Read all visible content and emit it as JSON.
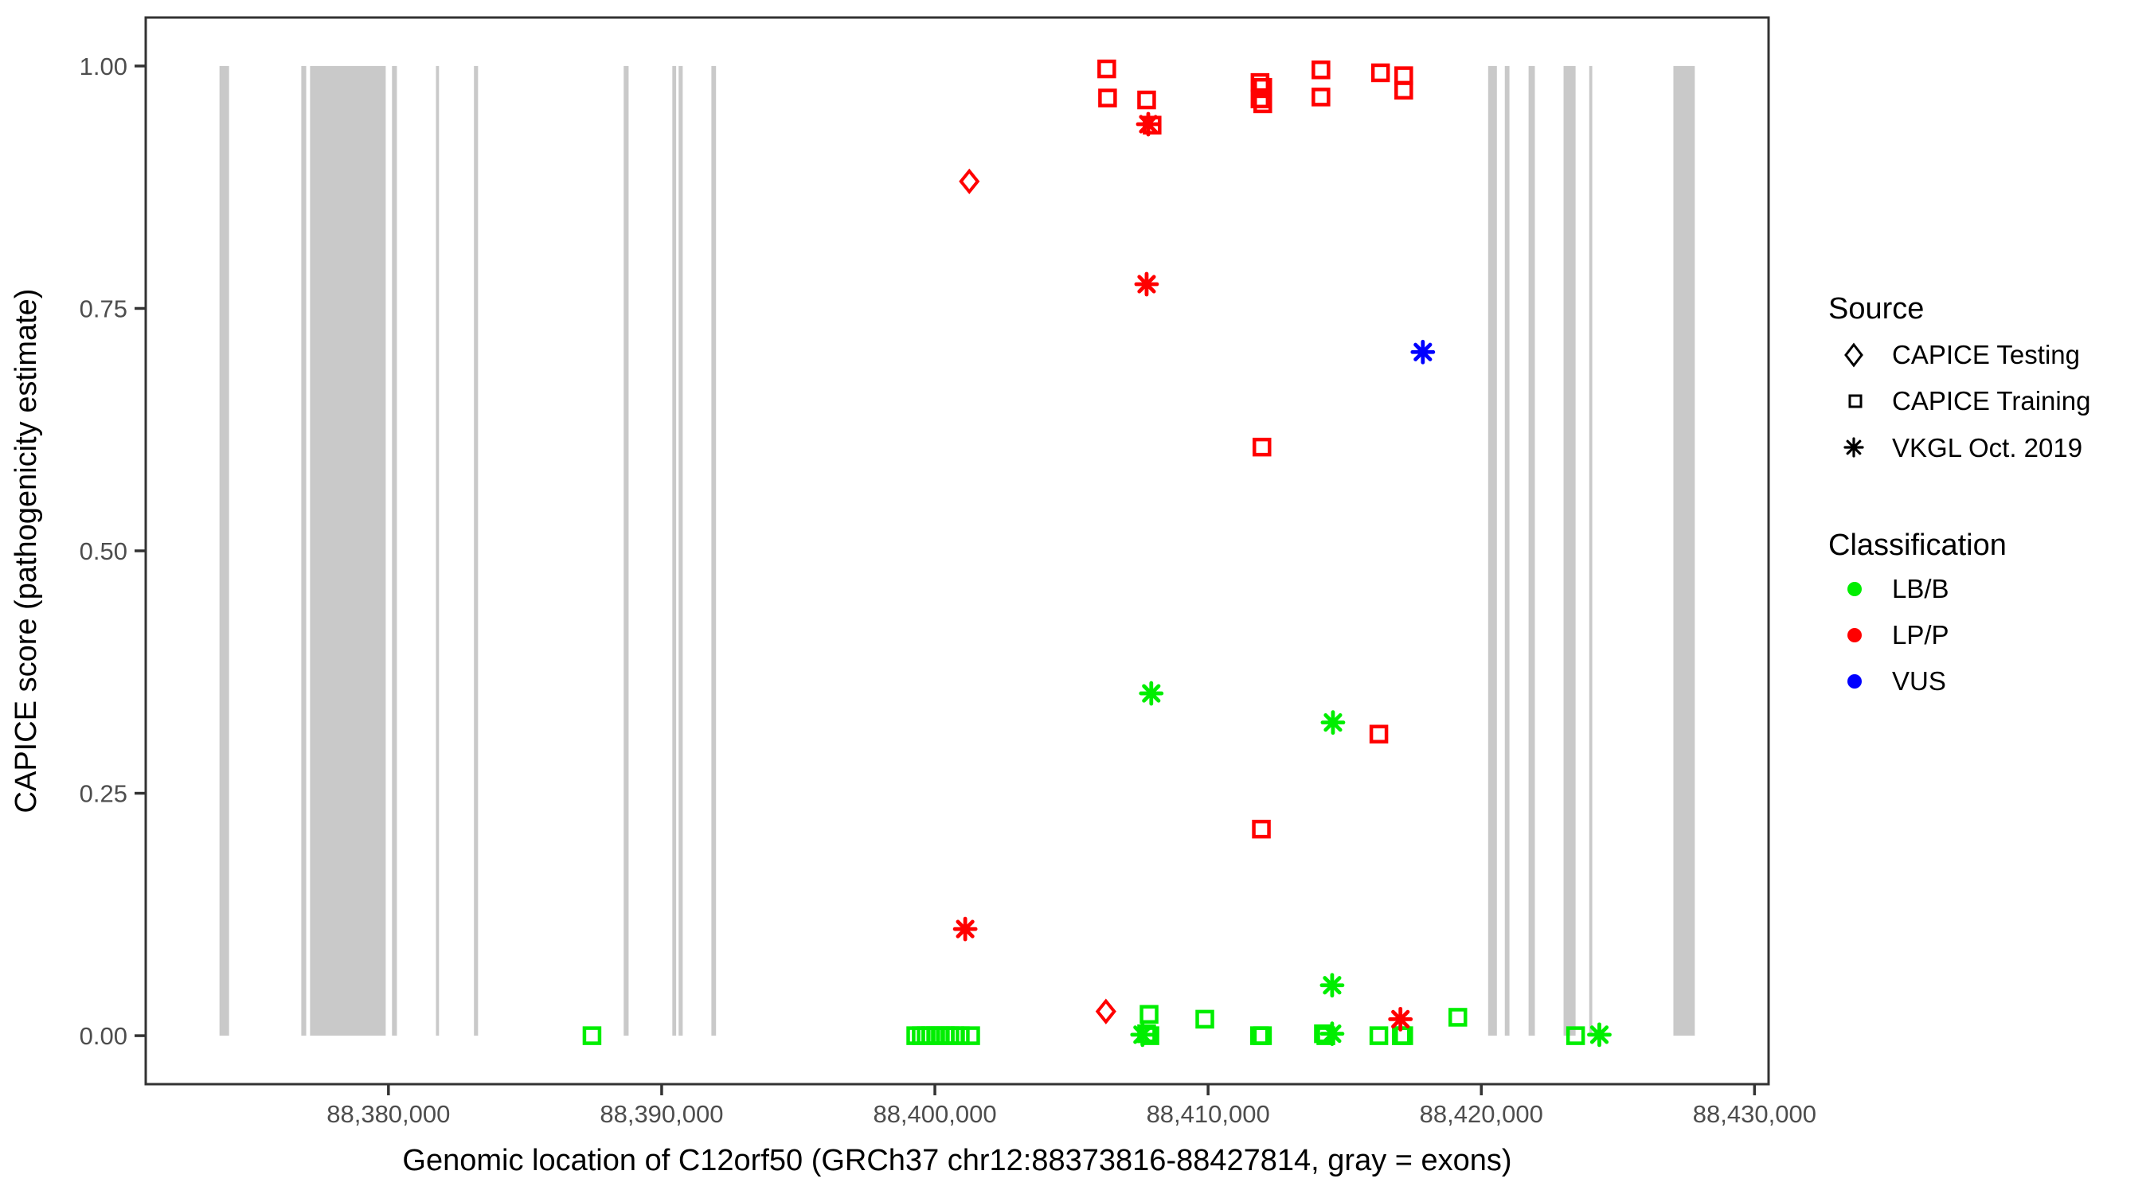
{
  "chart_data": {
    "type": "scatter",
    "xlabel": "Genomic location of C12orf50 (GRCh37 chr12:88373816-88427814, gray = exons)",
    "ylabel": "CAPICE score (pathogenicity estimate)",
    "xlim": [
      88371116,
      88430514
    ],
    "ylim": [
      -0.05,
      1.05
    ],
    "x_ticks": [
      88380000,
      88390000,
      88400000,
      88410000,
      88420000,
      88430000
    ],
    "x_tick_labels": [
      "88,380,000",
      "88,390,000",
      "88,400,000",
      "88,410,000",
      "88,420,000",
      "88,430,000"
    ],
    "y_ticks": [
      0,
      0.25,
      0.5,
      0.75,
      1
    ],
    "y_tick_labels": [
      "0.00",
      "0.25",
      "0.50",
      "0.75",
      "1.00"
    ],
    "grid": false,
    "gene_region": [
      88373816,
      88427814
    ],
    "exon_color": "#C9C9C9",
    "colors": {
      "LB/B": "#00EE00",
      "LP/P": "#FF0000",
      "VUS": "#0000FF"
    },
    "shapes": {
      "CAPICE Testing": "diamond",
      "CAPICE Training": "square",
      "VKGL Oct. 2019": "asterisk"
    },
    "exons": [
      [
        88373816,
        88374166
      ],
      [
        88376810,
        88376990
      ],
      [
        88377130,
        88379900
      ],
      [
        88380130,
        88380310
      ],
      [
        88381740,
        88381850
      ],
      [
        88383130,
        88383280
      ],
      [
        88388610,
        88388790
      ],
      [
        88390390,
        88390530
      ],
      [
        88390620,
        88390770
      ],
      [
        88391820,
        88391990
      ],
      [
        88420250,
        88420570
      ],
      [
        88420860,
        88421030
      ],
      [
        88421730,
        88421960
      ],
      [
        88423010,
        88423450
      ],
      [
        88423950,
        88424060
      ],
      [
        88427030,
        88427814
      ]
    ],
    "points": [
      {
        "x": 88401260,
        "y": 0.881,
        "source": "CAPICE Testing",
        "classification": "LP/P"
      },
      {
        "x": 88406260,
        "y": 0.025,
        "source": "CAPICE Testing",
        "classification": "LP/P"
      },
      {
        "x": 88406290,
        "y": 0.997,
        "source": "CAPICE Training",
        "classification": "LP/P"
      },
      {
        "x": 88406320,
        "y": 0.967,
        "source": "CAPICE Training",
        "classification": "LP/P"
      },
      {
        "x": 88407750,
        "y": 0.965,
        "source": "CAPICE Training",
        "classification": "LP/P"
      },
      {
        "x": 88407950,
        "y": 0.939,
        "source": "CAPICE Training",
        "classification": "LP/P"
      },
      {
        "x": 88411900,
        "y": 0.983,
        "source": "CAPICE Training",
        "classification": "LP/P"
      },
      {
        "x": 88412000,
        "y": 0.978,
        "source": "CAPICE Training",
        "classification": "LP/P"
      },
      {
        "x": 88411900,
        "y": 0.966,
        "source": "CAPICE Training",
        "classification": "LP/P"
      },
      {
        "x": 88412000,
        "y": 0.961,
        "source": "CAPICE Training",
        "classification": "LP/P"
      },
      {
        "x": 88414130,
        "y": 0.996,
        "source": "CAPICE Training",
        "classification": "LP/P"
      },
      {
        "x": 88414130,
        "y": 0.968,
        "source": "CAPICE Training",
        "classification": "LP/P"
      },
      {
        "x": 88416310,
        "y": 0.993,
        "source": "CAPICE Training",
        "classification": "LP/P"
      },
      {
        "x": 88417160,
        "y": 0.99,
        "source": "CAPICE Training",
        "classification": "LP/P"
      },
      {
        "x": 88417160,
        "y": 0.975,
        "source": "CAPICE Training",
        "classification": "LP/P"
      },
      {
        "x": 88411970,
        "y": 0.607,
        "source": "CAPICE Training",
        "classification": "LP/P"
      },
      {
        "x": 88416250,
        "y": 0.311,
        "source": "CAPICE Training",
        "classification": "LP/P"
      },
      {
        "x": 88411950,
        "y": 0.213,
        "source": "CAPICE Training",
        "classification": "LP/P"
      },
      {
        "x": 88387450,
        "y": 0.0,
        "source": "CAPICE Training",
        "classification": "LB/B"
      },
      {
        "x": 88399300,
        "y": 0.0,
        "source": "CAPICE Training",
        "classification": "LB/B"
      },
      {
        "x": 88399500,
        "y": 0.0,
        "source": "CAPICE Training",
        "classification": "LB/B"
      },
      {
        "x": 88399680,
        "y": 0.0,
        "source": "CAPICE Training",
        "classification": "LB/B"
      },
      {
        "x": 88399850,
        "y": 0.0,
        "source": "CAPICE Training",
        "classification": "LB/B"
      },
      {
        "x": 88400030,
        "y": 0.0,
        "source": "CAPICE Training",
        "classification": "LB/B"
      },
      {
        "x": 88400200,
        "y": 0.0,
        "source": "CAPICE Training",
        "classification": "LB/B"
      },
      {
        "x": 88400380,
        "y": 0.0,
        "source": "CAPICE Training",
        "classification": "LB/B"
      },
      {
        "x": 88400550,
        "y": 0.0,
        "source": "CAPICE Training",
        "classification": "LB/B"
      },
      {
        "x": 88400730,
        "y": 0.0,
        "source": "CAPICE Training",
        "classification": "LB/B"
      },
      {
        "x": 88400930,
        "y": 0.0,
        "source": "CAPICE Training",
        "classification": "LB/B"
      },
      {
        "x": 88401310,
        "y": 0.0,
        "source": "CAPICE Training",
        "classification": "LB/B"
      },
      {
        "x": 88407840,
        "y": 0.022,
        "source": "CAPICE Training",
        "classification": "LB/B"
      },
      {
        "x": 88407750,
        "y": 0.002,
        "source": "CAPICE Training",
        "classification": "LB/B"
      },
      {
        "x": 88407870,
        "y": 0.0,
        "source": "CAPICE Training",
        "classification": "LB/B"
      },
      {
        "x": 88409880,
        "y": 0.017,
        "source": "CAPICE Training",
        "classification": "LB/B"
      },
      {
        "x": 88411880,
        "y": 0.0,
        "source": "CAPICE Training",
        "classification": "LB/B"
      },
      {
        "x": 88411990,
        "y": 0.0,
        "source": "CAPICE Training",
        "classification": "LB/B"
      },
      {
        "x": 88414220,
        "y": 0.002,
        "source": "CAPICE Training",
        "classification": "LB/B"
      },
      {
        "x": 88414310,
        "y": 0.0,
        "source": "CAPICE Training",
        "classification": "LB/B"
      },
      {
        "x": 88416250,
        "y": 0.0,
        "source": "CAPICE Training",
        "classification": "LB/B"
      },
      {
        "x": 88417070,
        "y": 0.0,
        "source": "CAPICE Training",
        "classification": "LB/B"
      },
      {
        "x": 88417160,
        "y": 0.0,
        "source": "CAPICE Training",
        "classification": "LB/B"
      },
      {
        "x": 88419140,
        "y": 0.019,
        "source": "CAPICE Training",
        "classification": "LB/B"
      },
      {
        "x": 88423450,
        "y": 0.0,
        "source": "CAPICE Training",
        "classification": "LB/B"
      },
      {
        "x": 88407810,
        "y": 0.94,
        "source": "VKGL Oct. 2019",
        "classification": "LP/P"
      },
      {
        "x": 88407750,
        "y": 0.775,
        "source": "VKGL Oct. 2019",
        "classification": "LP/P"
      },
      {
        "x": 88401110,
        "y": 0.11,
        "source": "VKGL Oct. 2019",
        "classification": "LP/P"
      },
      {
        "x": 88417040,
        "y": 0.017,
        "source": "VKGL Oct. 2019",
        "classification": "LP/P"
      },
      {
        "x": 88407920,
        "y": 0.353,
        "source": "VKGL Oct. 2019",
        "classification": "LB/B"
      },
      {
        "x": 88414570,
        "y": 0.323,
        "source": "VKGL Oct. 2019",
        "classification": "LB/B"
      },
      {
        "x": 88414540,
        "y": 0.052,
        "source": "VKGL Oct. 2019",
        "classification": "LB/B"
      },
      {
        "x": 88407600,
        "y": 0.001,
        "source": "VKGL Oct. 2019",
        "classification": "LB/B"
      },
      {
        "x": 88414540,
        "y": 0.002,
        "source": "VKGL Oct. 2019",
        "classification": "LB/B"
      },
      {
        "x": 88424320,
        "y": 0.001,
        "source": "VKGL Oct. 2019",
        "classification": "LB/B"
      },
      {
        "x": 88417860,
        "y": 0.705,
        "source": "VKGL Oct. 2019",
        "classification": "VUS"
      }
    ]
  },
  "legend": {
    "source": {
      "title": "Source",
      "items": [
        {
          "label": "CAPICE Testing",
          "shape": "diamond"
        },
        {
          "label": "CAPICE Training",
          "shape": "square"
        },
        {
          "label": "VKGL Oct. 2019",
          "shape": "asterisk"
        }
      ]
    },
    "classification": {
      "title": "Classification",
      "items": [
        {
          "label": "LB/B",
          "color": "#00EE00"
        },
        {
          "label": "LP/P",
          "color": "#FF0000"
        },
        {
          "label": "VUS",
          "color": "#0000FF"
        }
      ]
    }
  }
}
